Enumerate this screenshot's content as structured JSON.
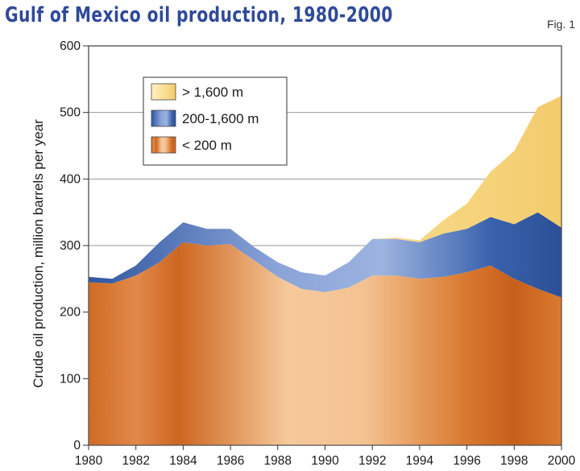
{
  "figure_label": "Fig. 1",
  "chart_data": {
    "type": "area",
    "stacked": true,
    "title": "Gulf of Mexico oil production, 1980-2000",
    "xlabel": "",
    "ylabel": "Crude oil production, million barrels per year",
    "xlim": [
      1980,
      2000
    ],
    "ylim": [
      0,
      600
    ],
    "yticks": [
      0,
      100,
      200,
      300,
      400,
      500,
      600
    ],
    "xticks": [
      1980,
      1982,
      1984,
      1986,
      1988,
      1990,
      1992,
      1994,
      1996,
      1998,
      2000
    ],
    "grid": true,
    "legend_position": "top-left",
    "x": [
      1980,
      1981,
      1982,
      1983,
      1984,
      1985,
      1986,
      1987,
      1988,
      1989,
      1990,
      1991,
      1992,
      1993,
      1994,
      1995,
      1996,
      1997,
      1998,
      1999,
      2000
    ],
    "series": [
      {
        "name": "< 200 m",
        "color": "#d8732e",
        "values": [
          245,
          243,
          255,
          275,
          305,
          300,
          302,
          278,
          253,
          235,
          230,
          237,
          255,
          255,
          250,
          253,
          260,
          270,
          250,
          235,
          222
        ]
      },
      {
        "name": "200-1,600 m",
        "color": "#2f56a0",
        "values": [
          8,
          7,
          15,
          30,
          30,
          25,
          23,
          20,
          22,
          25,
          25,
          38,
          55,
          55,
          55,
          65,
          65,
          73,
          82,
          115,
          105
        ]
      },
      {
        "name": "> 1,600 m",
        "color": "#f3cf7c",
        "values": [
          0,
          0,
          0,
          0,
          0,
          0,
          0,
          0,
          0,
          0,
          0,
          0,
          0,
          2,
          3,
          20,
          38,
          68,
          110,
          158,
          198
        ]
      }
    ],
    "legend_order": [
      "> 1,600 m",
      "200-1,600 m",
      "< 200 m"
    ]
  }
}
